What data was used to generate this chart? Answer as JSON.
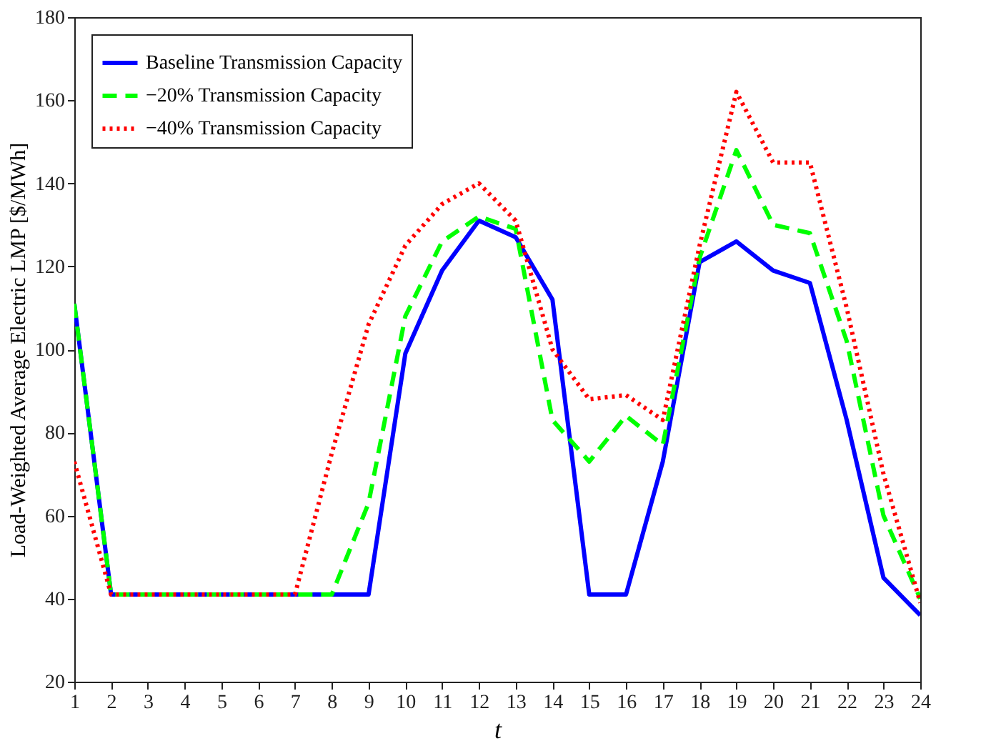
{
  "chart_data": {
    "type": "line",
    "xlabel": "t",
    "ylabel": "Load-Weighted Average Electric LMP [$/MWh]",
    "x": [
      1,
      2,
      3,
      4,
      5,
      6,
      7,
      8,
      9,
      10,
      11,
      12,
      13,
      14,
      15,
      16,
      17,
      18,
      19,
      20,
      21,
      22,
      23,
      24
    ],
    "xlim": [
      1,
      24
    ],
    "xticks": [
      1,
      2,
      3,
      4,
      5,
      6,
      7,
      8,
      9,
      10,
      11,
      12,
      13,
      14,
      15,
      16,
      17,
      18,
      19,
      20,
      21,
      22,
      23,
      24
    ],
    "ylim": [
      20,
      180
    ],
    "yticks": [
      20,
      40,
      60,
      80,
      100,
      120,
      140,
      160,
      180
    ],
    "grid": false,
    "legend": "top left",
    "marker": "none",
    "series": [
      {
        "name": "Baseline Transmission Capacity",
        "color": "#0000ff",
        "line_style": "solid",
        "values": [
          111,
          41,
          41,
          41,
          41,
          41,
          41,
          41,
          41,
          99,
          119,
          131,
          127,
          112,
          41,
          41,
          73,
          121,
          126,
          119,
          116,
          83,
          45,
          36
        ]
      },
      {
        "name": "−20% Transmission Capacity",
        "color": "#00ff00",
        "line_style": "dashed",
        "values": [
          111,
          41,
          41,
          41,
          41,
          41,
          41,
          41,
          63,
          108,
          126,
          132,
          129,
          83,
          73,
          84,
          77,
          122,
          148,
          130,
          128,
          102,
          60,
          40
        ]
      },
      {
        "name": "−40% Transmission Capacity",
        "color": "#ff0000",
        "line_style": "dotted",
        "values": [
          73,
          41,
          41,
          41,
          41,
          41,
          41,
          75,
          106,
          125,
          135,
          140,
          131,
          100,
          88,
          89,
          83,
          125,
          162,
          145,
          145,
          110,
          70,
          39
        ]
      }
    ]
  }
}
